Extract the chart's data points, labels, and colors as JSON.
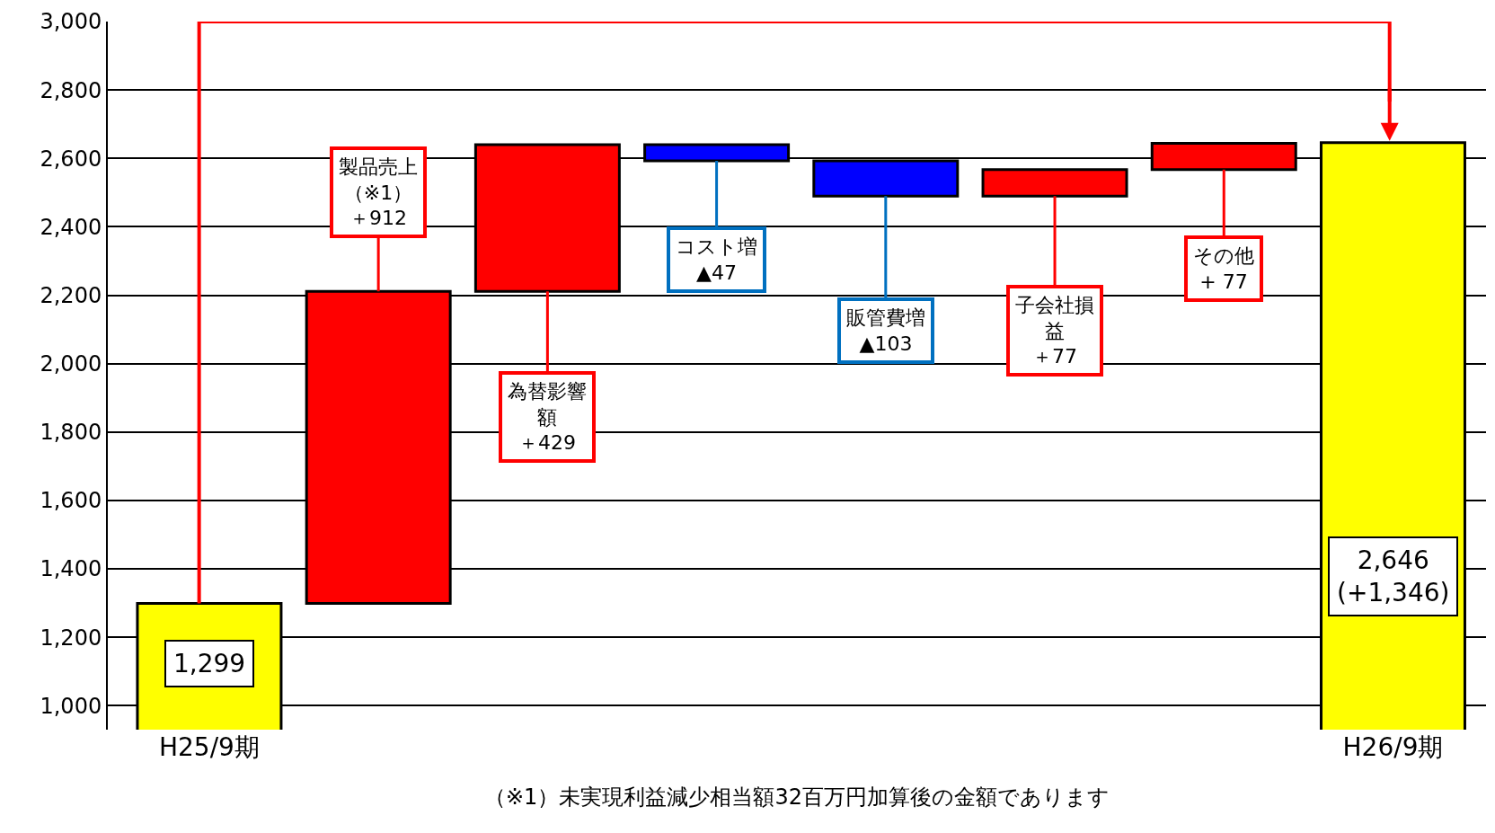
{
  "chart_data": {
    "type": "bar",
    "categories": [
      "H25/9期",
      null,
      null,
      null,
      null,
      null,
      null,
      "H26/9期"
    ],
    "values": [
      1299,
      912,
      429,
      -47,
      -103,
      77,
      77,
      2646
    ],
    "base": [
      null,
      1299,
      2211,
      2640,
      2593,
      2490,
      2567,
      null
    ],
    "colors": [
      "#ffff00",
      "#ff0000",
      "#ff0000",
      "#0000ff",
      "#0000ff",
      "#ff0000",
      "#ff0000",
      "#ffff00"
    ],
    "value_labels": [
      "1,299",
      "製品売上（※1）＋912",
      "為替影響額＋429",
      "コスト増\n▲47",
      "販管費増\n▲103",
      "子会社損益＋77",
      "その他\n+ 77",
      "2,646\n(+1,346)"
    ],
    "ylim": [
      930,
      3000
    ],
    "yticks": [
      {
        "value": 1000,
        "label": "1,000"
      },
      {
        "value": 1200,
        "label": "1,200"
      },
      {
        "value": 1400,
        "label": "1,400"
      },
      {
        "value": 1600,
        "label": "1,600"
      },
      {
        "value": 1800,
        "label": "1,800"
      },
      {
        "value": 2000,
        "label": "2,000"
      },
      {
        "value": 2200,
        "label": "2,200"
      },
      {
        "value": 2400,
        "label": "2,400"
      },
      {
        "value": 2600,
        "label": "2,600"
      },
      {
        "value": 2800,
        "label": "2,800"
      },
      {
        "value": 3000,
        "label": "3,000"
      }
    ],
    "grid": "y",
    "annotations": [
      "（※1）未実現利益減少相当額32百万円加算後の金額であります"
    ]
  }
}
